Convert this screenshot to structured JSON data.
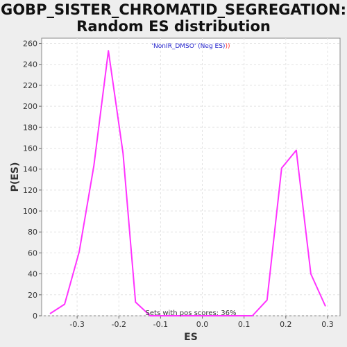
{
  "chart_data": {
    "type": "line",
    "title_line1": "GOBP_SISTER_CHROMATID_SEGREGATION:",
    "title_line2": "Random ES distribution",
    "xlabel": "ES",
    "ylabel": "P(ES)",
    "xlim": [
      -0.385,
      0.33
    ],
    "ylim": [
      0,
      265
    ],
    "x_ticks": [
      -0.3,
      -0.2,
      -0.1,
      0.0,
      0.1,
      0.2,
      0.3
    ],
    "x_tick_labels": [
      "-0.3",
      "-0.2",
      "-0.1",
      "0.0",
      "0.1",
      "0.2",
      "0.3"
    ],
    "y_ticks": [
      0,
      20,
      40,
      60,
      80,
      100,
      120,
      140,
      160,
      180,
      200,
      220,
      240,
      260
    ],
    "grid": true,
    "legend_text": "'NonIR_DMSO' (Neg ES)",
    "legend_suffix": "))",
    "annotation": "Sets with pos scores: 36%",
    "series": [
      {
        "color": "#ff33ff",
        "x": [
          -0.365,
          -0.33,
          -0.295,
          -0.26,
          -0.225,
          -0.19,
          -0.16,
          -0.125,
          -0.09,
          -0.055,
          -0.02,
          0.015,
          0.05,
          0.085,
          0.12,
          0.155,
          0.19,
          0.225,
          0.26,
          0.295
        ],
        "y": [
          2,
          11,
          61,
          143,
          253,
          155,
          13,
          0,
          0,
          0,
          0,
          0,
          0,
          0,
          0,
          15,
          141,
          158,
          40,
          9
        ]
      }
    ]
  }
}
